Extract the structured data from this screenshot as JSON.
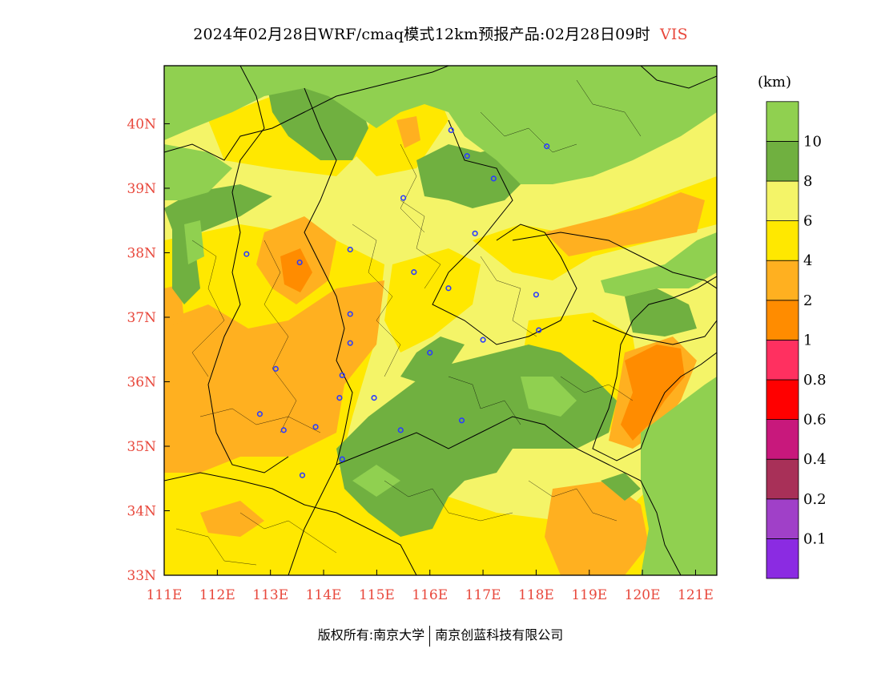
{
  "title": {
    "main": "2024年02月28日WRF/cmaq模式12km预报产品:02月28日09时",
    "variable": "VIS"
  },
  "map": {
    "lon_range": [
      111,
      121.4
    ],
    "lat_range": [
      33,
      40.9
    ],
    "x_ticks": [
      "111E",
      "112E",
      "113E",
      "114E",
      "115E",
      "116E",
      "117E",
      "118E",
      "119E",
      "120E",
      "121E"
    ],
    "y_ticks": [
      "33N",
      "34N",
      "35N",
      "36N",
      "37N",
      "38N",
      "39N",
      "40N"
    ],
    "cities": [
      {
        "lon": 116.4,
        "lat": 39.9
      },
      {
        "lon": 116.7,
        "lat": 39.5
      },
      {
        "lon": 118.2,
        "lat": 39.65
      },
      {
        "lon": 117.2,
        "lat": 39.15
      },
      {
        "lon": 115.5,
        "lat": 38.85
      },
      {
        "lon": 116.85,
        "lat": 38.3
      },
      {
        "lon": 114.5,
        "lat": 38.05
      },
      {
        "lon": 112.55,
        "lat": 37.98
      },
      {
        "lon": 113.55,
        "lat": 37.85
      },
      {
        "lon": 115.7,
        "lat": 37.7
      },
      {
        "lon": 116.35,
        "lat": 37.45
      },
      {
        "lon": 118.0,
        "lat": 37.35
      },
      {
        "lon": 114.5,
        "lat": 37.05
      },
      {
        "lon": 114.5,
        "lat": 36.6
      },
      {
        "lon": 116.0,
        "lat": 36.45
      },
      {
        "lon": 117.0,
        "lat": 36.65
      },
      {
        "lon": 118.05,
        "lat": 36.8
      },
      {
        "lon": 113.1,
        "lat": 36.2
      },
      {
        "lon": 114.35,
        "lat": 36.1
      },
      {
        "lon": 114.3,
        "lat": 35.75
      },
      {
        "lon": 114.95,
        "lat": 35.75
      },
      {
        "lon": 112.8,
        "lat": 35.5
      },
      {
        "lon": 113.25,
        "lat": 35.25
      },
      {
        "lon": 113.85,
        "lat": 35.3
      },
      {
        "lon": 115.45,
        "lat": 35.25
      },
      {
        "lon": 116.6,
        "lat": 35.4
      },
      {
        "lon": 114.35,
        "lat": 34.8
      },
      {
        "lon": 113.6,
        "lat": 34.55
      }
    ]
  },
  "legend": {
    "unit": "(km)",
    "colors": [
      "#8b2be2",
      "#a040c8",
      "#a83058",
      "#c8187c",
      "#ff0000",
      "#ff3060",
      "#ff8c00",
      "#ffb020",
      "#ffe800",
      "#f4f468",
      "#70b040",
      "#90d050"
    ],
    "labels": [
      "0.1",
      "0.2",
      "0.4",
      "0.6",
      "0.8",
      "1",
      "2",
      "4",
      "6",
      "8",
      "10"
    ]
  },
  "footer": {
    "left": "版权所有:南京大学",
    "right": "南京创蓝科技有限公司"
  }
}
